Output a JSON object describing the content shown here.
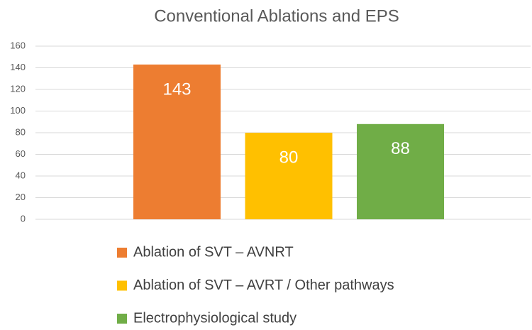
{
  "chart_data": {
    "type": "bar",
    "title": "Conventional Ablations and EPS",
    "series": [
      {
        "name": "Ablation of SVT – AVNRT",
        "color": "#ed7d31",
        "values": [
          143
        ]
      },
      {
        "name": "Ablation of SVT – AVRT / Other pathways",
        "color": "#ffc000",
        "values": [
          80
        ]
      },
      {
        "name": "Electrophysiological study",
        "color": "#70ad47",
        "values": [
          88
        ]
      }
    ],
    "ylim": [
      0,
      160
    ],
    "yticks": [
      0,
      20,
      40,
      60,
      80,
      100,
      120,
      140,
      160
    ],
    "grid": true,
    "legend": "bottom"
  }
}
